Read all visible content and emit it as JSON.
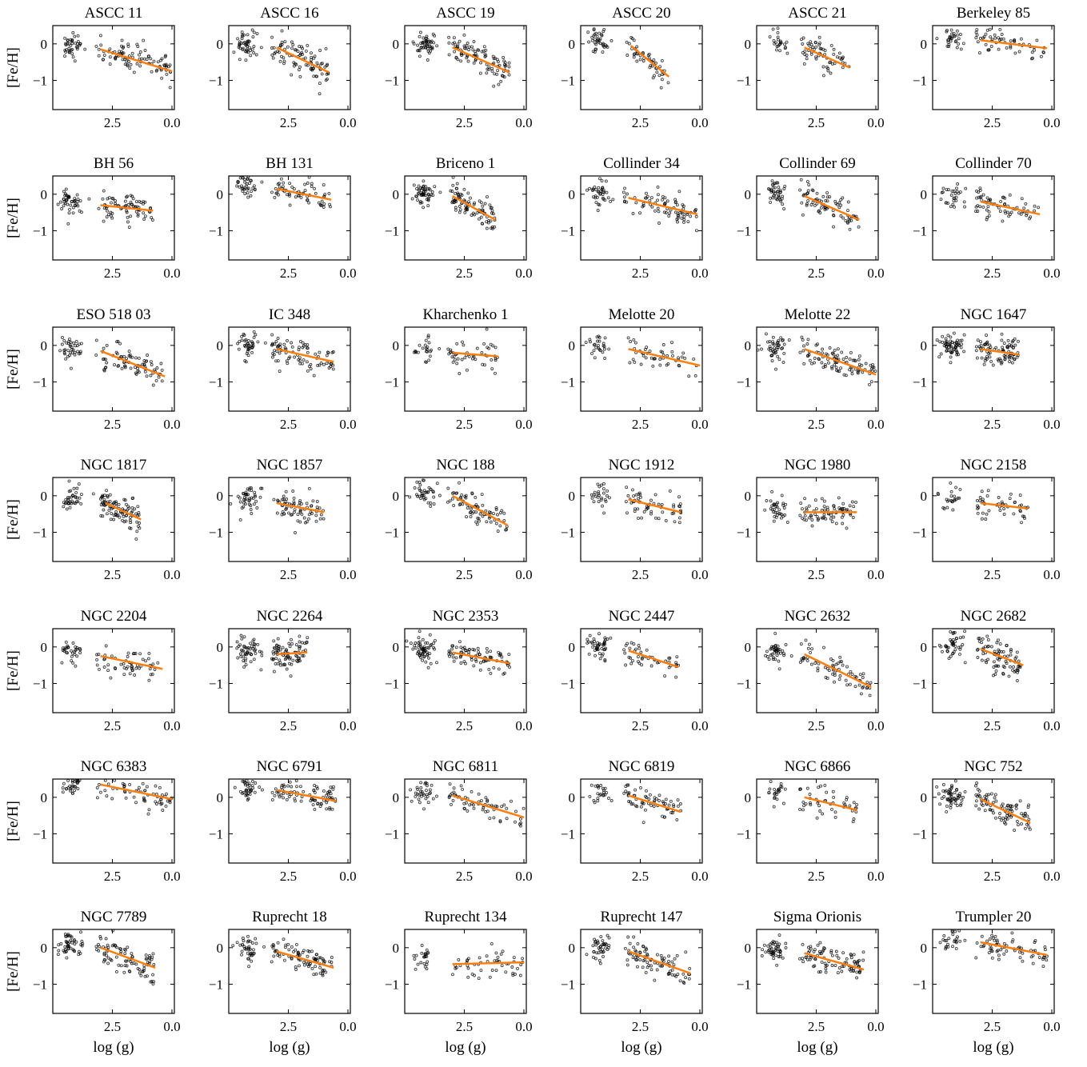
{
  "figure": {
    "accent_colors": {
      "fit_line": "#ff7f0e",
      "points": "#000000"
    },
    "xlabel": "log (g)",
    "ylabel": "[Fe/H]"
  },
  "chart_data": {
    "type": "scatter",
    "grid": false,
    "x_axis_inverted": true,
    "xlim": [
      5.0,
      -0.1
    ],
    "ylim": [
      -1.8,
      0.5
    ],
    "xticks": [
      2.5,
      0.0
    ],
    "yticks": [
      0,
      -1
    ],
    "xtick_labels": [
      "2.5",
      "0.0"
    ],
    "ytick_labels": [
      "0",
      "−1"
    ],
    "xlabel": "log (g)",
    "ylabel": "[Fe/H]",
    "panels": [
      {
        "title": "ASCC 11",
        "fit": {
          "x": [
            3.0,
            0.0
          ],
          "y": [
            -0.15,
            -0.75
          ]
        }
      },
      {
        "title": "ASCC 16",
        "fit": {
          "x": [
            3.0,
            0.8
          ],
          "y": [
            -0.1,
            -0.78
          ]
        }
      },
      {
        "title": "ASCC 19",
        "fit": {
          "x": [
            3.0,
            0.6
          ],
          "y": [
            -0.1,
            -0.78
          ]
        }
      },
      {
        "title": "ASCC 20",
        "fit": {
          "x": [
            2.9,
            1.3
          ],
          "y": [
            -0.05,
            -0.9
          ]
        }
      },
      {
        "title": "ASCC 21",
        "fit": {
          "x": [
            3.0,
            1.1
          ],
          "y": [
            -0.1,
            -0.65
          ]
        }
      },
      {
        "title": "Berkeley 85",
        "fit": {
          "x": [
            3.0,
            0.2
          ],
          "y": [
            0.1,
            -0.12
          ]
        }
      },
      {
        "title": "BH 56",
        "fit": {
          "x": [
            3.0,
            0.8
          ],
          "y": [
            -0.3,
            -0.45
          ]
        }
      },
      {
        "title": "BH 131",
        "fit": {
          "x": [
            3.0,
            0.7
          ],
          "y": [
            0.15,
            -0.15
          ]
        }
      },
      {
        "title": "Briceno 1",
        "fit": {
          "x": [
            3.0,
            1.2
          ],
          "y": [
            -0.05,
            -0.7
          ]
        }
      },
      {
        "title": "Collinder 34",
        "fit": {
          "x": [
            3.0,
            0.1
          ],
          "y": [
            -0.1,
            -0.55
          ]
        }
      },
      {
        "title": "Collinder 69",
        "fit": {
          "x": [
            3.0,
            0.7
          ],
          "y": [
            -0.05,
            -0.7
          ]
        }
      },
      {
        "title": "Collinder 70",
        "fit": {
          "x": [
            3.0,
            0.5
          ],
          "y": [
            -0.2,
            -0.55
          ]
        }
      },
      {
        "title": "ESO 518 03",
        "fit": {
          "x": [
            3.0,
            0.3
          ],
          "y": [
            -0.15,
            -0.85
          ]
        }
      },
      {
        "title": "IC 348",
        "fit": {
          "x": [
            3.0,
            0.6
          ],
          "y": [
            -0.1,
            -0.45
          ]
        }
      },
      {
        "title": "Kharchenko 1",
        "fit": {
          "x": [
            3.0,
            1.1
          ],
          "y": [
            -0.2,
            -0.3
          ]
        }
      },
      {
        "title": "Melotte 20",
        "fit": {
          "x": [
            3.0,
            0.0
          ],
          "y": [
            -0.1,
            -0.55
          ]
        }
      },
      {
        "title": "Melotte 22",
        "fit": {
          "x": [
            3.0,
            0.0
          ],
          "y": [
            -0.1,
            -0.8
          ]
        }
      },
      {
        "title": "NGC 1647",
        "fit": {
          "x": [
            3.0,
            1.4
          ],
          "y": [
            -0.1,
            -0.25
          ]
        }
      },
      {
        "title": "NGC 1817",
        "fit": {
          "x": [
            2.8,
            1.3
          ],
          "y": [
            -0.2,
            -0.65
          ]
        }
      },
      {
        "title": "NGC 1857",
        "fit": {
          "x": [
            3.0,
            1.0
          ],
          "y": [
            -0.2,
            -0.45
          ]
        }
      },
      {
        "title": "NGC 188",
        "fit": {
          "x": [
            3.0,
            0.7
          ],
          "y": [
            0.0,
            -0.8
          ]
        }
      },
      {
        "title": "NGC 1912",
        "fit": {
          "x": [
            3.0,
            0.8
          ],
          "y": [
            -0.1,
            -0.45
          ]
        }
      },
      {
        "title": "NGC 1980",
        "fit": {
          "x": [
            3.0,
            0.8
          ],
          "y": [
            -0.45,
            -0.45
          ]
        }
      },
      {
        "title": "NGC 2158",
        "fit": {
          "x": [
            3.0,
            1.0
          ],
          "y": [
            -0.2,
            -0.35
          ]
        }
      },
      {
        "title": "NGC 2204",
        "fit": {
          "x": [
            3.0,
            0.4
          ],
          "y": [
            -0.25,
            -0.6
          ]
        }
      },
      {
        "title": "NGC 2264",
        "fit": {
          "x": [
            3.0,
            1.7
          ],
          "y": [
            -0.2,
            -0.15
          ]
        }
      },
      {
        "title": "NGC 2353",
        "fit": {
          "x": [
            3.0,
            0.6
          ],
          "y": [
            -0.15,
            -0.45
          ]
        }
      },
      {
        "title": "NGC 2447",
        "fit": {
          "x": [
            3.0,
            0.9
          ],
          "y": [
            -0.1,
            -0.55
          ]
        }
      },
      {
        "title": "NGC 2632",
        "fit": {
          "x": [
            3.0,
            0.2
          ],
          "y": [
            -0.2,
            -1.1
          ]
        }
      },
      {
        "title": "NGC 2682",
        "fit": {
          "x": [
            3.0,
            1.2
          ],
          "y": [
            -0.05,
            -0.5
          ]
        }
      },
      {
        "title": "NGC 6383",
        "fit": {
          "x": [
            3.0,
            0.0
          ],
          "y": [
            0.35,
            -0.05
          ]
        }
      },
      {
        "title": "NGC 6791",
        "fit": {
          "x": [
            3.0,
            0.5
          ],
          "y": [
            0.2,
            -0.1
          ]
        }
      },
      {
        "title": "NGC 6811",
        "fit": {
          "x": [
            3.0,
            0.0
          ],
          "y": [
            0.05,
            -0.55
          ]
        }
      },
      {
        "title": "NGC 6819",
        "fit": {
          "x": [
            3.0,
            0.8
          ],
          "y": [
            0.05,
            -0.4
          ]
        }
      },
      {
        "title": "NGC 6866",
        "fit": {
          "x": [
            3.0,
            0.8
          ],
          "y": [
            0.0,
            -0.35
          ]
        }
      },
      {
        "title": "NGC 752",
        "fit": {
          "x": [
            3.0,
            0.9
          ],
          "y": [
            -0.05,
            -0.7
          ]
        }
      },
      {
        "title": "NGC 7789",
        "fit": {
          "x": [
            3.0,
            0.7
          ],
          "y": [
            0.0,
            -0.55
          ]
        }
      },
      {
        "title": "Ruprecht 18",
        "fit": {
          "x": [
            3.0,
            0.6
          ],
          "y": [
            -0.1,
            -0.55
          ]
        }
      },
      {
        "title": "Ruprecht 134",
        "fit": {
          "x": [
            3.0,
            0.0
          ],
          "y": [
            -0.45,
            -0.4
          ]
        }
      },
      {
        "title": "Ruprecht 147",
        "fit": {
          "x": [
            3.0,
            0.4
          ],
          "y": [
            -0.1,
            -0.7
          ]
        }
      },
      {
        "title": "Sigma Orionis",
        "fit": {
          "x": [
            3.0,
            0.5
          ],
          "y": [
            -0.15,
            -0.6
          ]
        }
      },
      {
        "title": "Trumpler 20",
        "fit": {
          "x": [
            3.0,
            0.2
          ],
          "y": [
            0.15,
            -0.2
          ]
        }
      }
    ]
  }
}
